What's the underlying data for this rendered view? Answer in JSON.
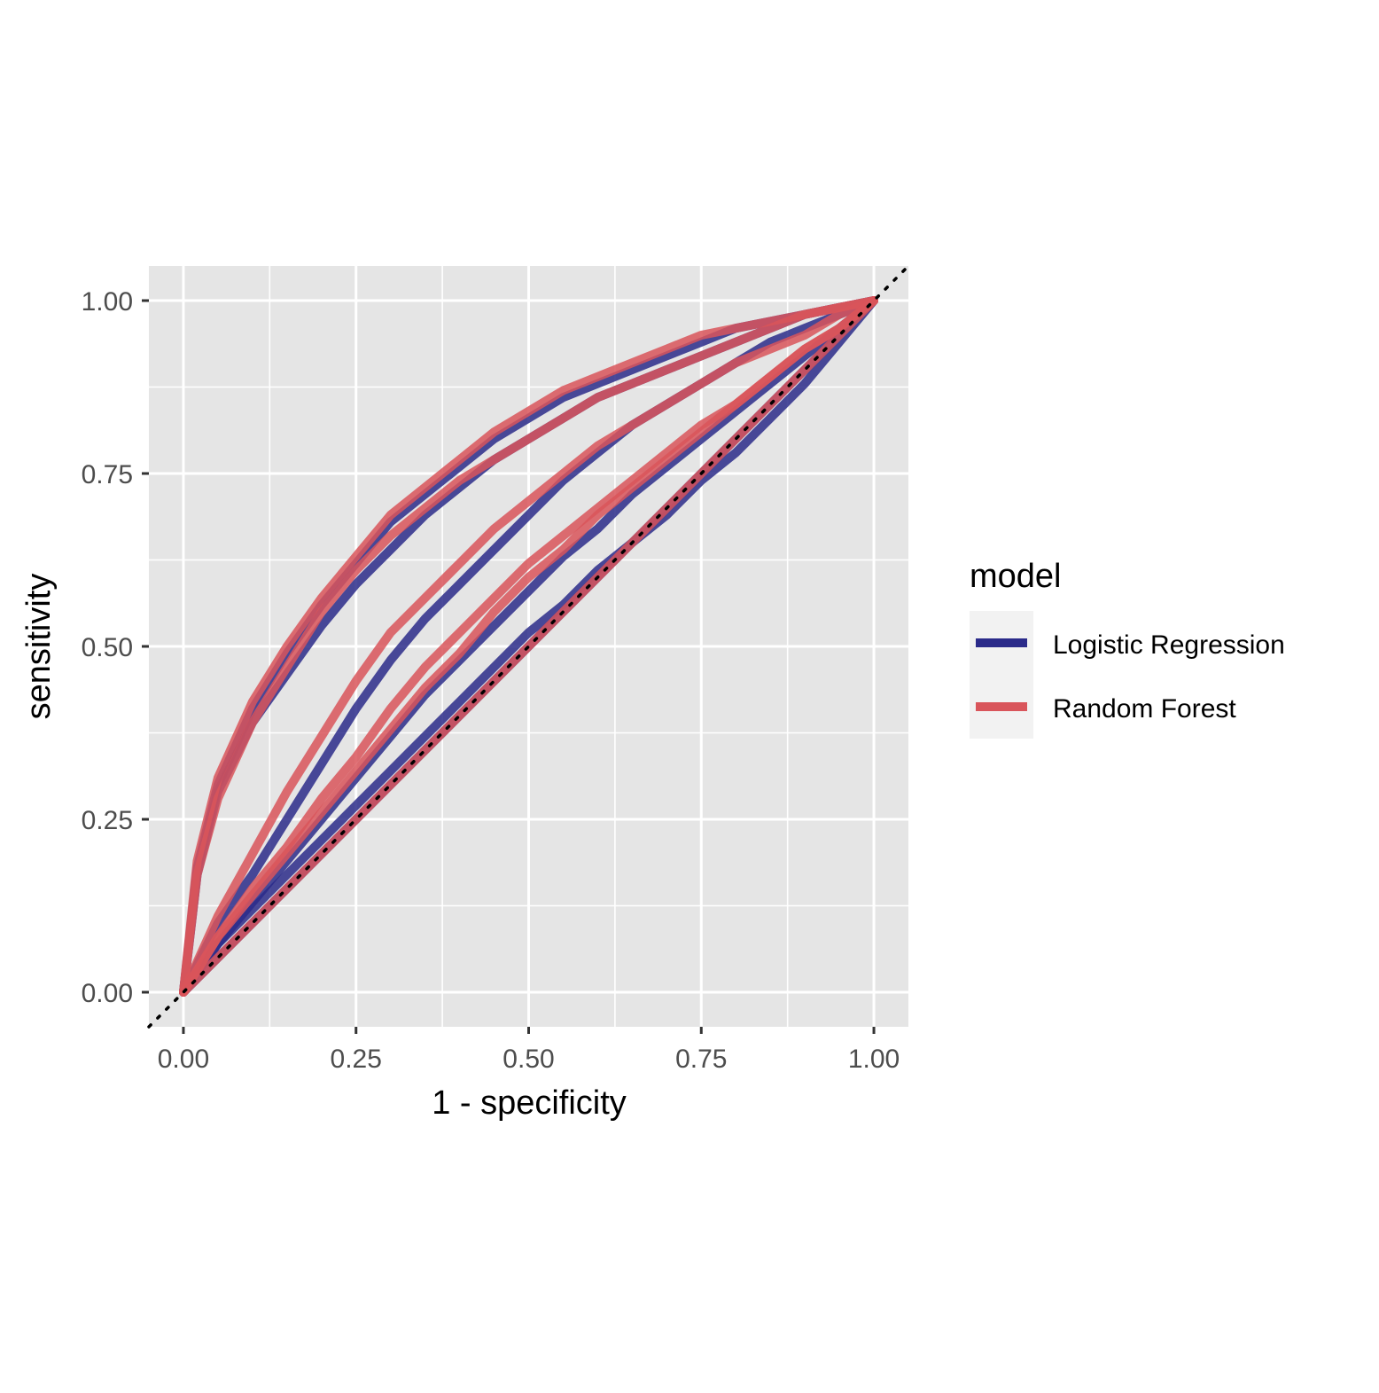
{
  "chart_data": {
    "type": "line",
    "xlabel": "1 - specificity",
    "ylabel": "sensitivity",
    "xlim": [
      -0.05,
      1.05
    ],
    "ylim": [
      -0.05,
      1.05
    ],
    "xticks": [
      "0.00",
      "0.25",
      "0.50",
      "0.75",
      "1.00"
    ],
    "yticks": [
      "0.00",
      "0.25",
      "0.50",
      "0.75",
      "1.00"
    ],
    "grid": true,
    "reference_line": {
      "style": "dotted",
      "x": [
        -0.05,
        1.05
      ],
      "y": [
        -0.05,
        1.05
      ]
    },
    "legend": {
      "title": "model",
      "position": "right",
      "entries": [
        "Logistic Regression",
        "Random Forest"
      ]
    },
    "colors": {
      "Logistic Regression": "#2b2b8a",
      "Random Forest": "#d9555b",
      "panel": "#e5e5e5",
      "grid": "#ffffff"
    },
    "series": [
      {
        "name": "Logistic Regression",
        "curve": "upper",
        "x": [
          0,
          0.02,
          0.05,
          0.1,
          0.15,
          0.2,
          0.25,
          0.3,
          0.35,
          0.4,
          0.45,
          0.5,
          0.55,
          0.6,
          0.65,
          0.7,
          0.75,
          0.8,
          0.85,
          0.9,
          0.95,
          1.0
        ],
        "y": [
          0,
          0.18,
          0.3,
          0.41,
          0.49,
          0.56,
          0.62,
          0.68,
          0.72,
          0.76,
          0.8,
          0.83,
          0.86,
          0.88,
          0.9,
          0.92,
          0.94,
          0.96,
          0.97,
          0.98,
          0.99,
          1.0
        ]
      },
      {
        "name": "Logistic Regression",
        "curve": "upper-middle",
        "x": [
          0,
          0.02,
          0.05,
          0.1,
          0.15,
          0.2,
          0.25,
          0.3,
          0.35,
          0.4,
          0.45,
          0.5,
          0.55,
          0.6,
          0.65,
          0.7,
          0.75,
          0.8,
          0.85,
          0.9,
          0.95,
          1.0
        ],
        "y": [
          0,
          0.17,
          0.29,
          0.39,
          0.46,
          0.53,
          0.59,
          0.64,
          0.69,
          0.73,
          0.77,
          0.8,
          0.83,
          0.86,
          0.88,
          0.9,
          0.92,
          0.94,
          0.96,
          0.98,
          0.99,
          1.0
        ]
      },
      {
        "name": "Logistic Regression",
        "curve": "middle",
        "x": [
          0,
          0.05,
          0.1,
          0.15,
          0.2,
          0.25,
          0.3,
          0.35,
          0.4,
          0.45,
          0.5,
          0.55,
          0.6,
          0.65,
          0.7,
          0.75,
          0.8,
          0.85,
          0.9,
          0.95,
          1.0
        ],
        "y": [
          0,
          0.1,
          0.17,
          0.25,
          0.33,
          0.41,
          0.48,
          0.54,
          0.59,
          0.64,
          0.69,
          0.74,
          0.78,
          0.82,
          0.85,
          0.88,
          0.91,
          0.94,
          0.96,
          0.98,
          1.0
        ]
      },
      {
        "name": "Logistic Regression",
        "curve": "lower-middle",
        "x": [
          0,
          0.05,
          0.1,
          0.15,
          0.2,
          0.25,
          0.3,
          0.35,
          0.4,
          0.45,
          0.5,
          0.55,
          0.6,
          0.65,
          0.7,
          0.75,
          0.8,
          0.85,
          0.9,
          0.95,
          1.0
        ],
        "y": [
          0,
          0.07,
          0.13,
          0.19,
          0.25,
          0.31,
          0.37,
          0.43,
          0.48,
          0.53,
          0.58,
          0.63,
          0.67,
          0.72,
          0.76,
          0.8,
          0.84,
          0.88,
          0.92,
          0.96,
          1.0
        ]
      },
      {
        "name": "Logistic Regression",
        "curve": "lower",
        "x": [
          0,
          0.05,
          0.1,
          0.15,
          0.2,
          0.25,
          0.3,
          0.35,
          0.4,
          0.45,
          0.5,
          0.55,
          0.6,
          0.65,
          0.7,
          0.75,
          0.8,
          0.85,
          0.9,
          0.95,
          1.0
        ],
        "y": [
          0,
          0.07,
          0.12,
          0.17,
          0.22,
          0.27,
          0.32,
          0.37,
          0.42,
          0.47,
          0.52,
          0.56,
          0.61,
          0.65,
          0.69,
          0.74,
          0.78,
          0.83,
          0.88,
          0.94,
          1.0
        ]
      },
      {
        "name": "Logistic Regression",
        "curve": "diagonal",
        "x": [
          0,
          1
        ],
        "y": [
          0,
          1
        ]
      },
      {
        "name": "Random Forest",
        "curve": "upper",
        "x": [
          0,
          0.02,
          0.05,
          0.1,
          0.15,
          0.2,
          0.25,
          0.3,
          0.35,
          0.4,
          0.45,
          0.5,
          0.55,
          0.6,
          0.65,
          0.7,
          0.75,
          0.8,
          0.85,
          0.9,
          0.95,
          1.0
        ],
        "y": [
          0,
          0.19,
          0.31,
          0.42,
          0.5,
          0.57,
          0.63,
          0.69,
          0.73,
          0.77,
          0.81,
          0.84,
          0.87,
          0.89,
          0.91,
          0.93,
          0.95,
          0.96,
          0.97,
          0.98,
          0.99,
          1.0
        ]
      },
      {
        "name": "Random Forest",
        "curve": "upper-middle",
        "x": [
          0,
          0.02,
          0.05,
          0.1,
          0.15,
          0.2,
          0.25,
          0.3,
          0.35,
          0.4,
          0.45,
          0.5,
          0.55,
          0.6,
          0.65,
          0.7,
          0.75,
          0.8,
          0.85,
          0.9,
          0.95,
          1.0
        ],
        "y": [
          0,
          0.17,
          0.28,
          0.39,
          0.47,
          0.55,
          0.61,
          0.66,
          0.7,
          0.74,
          0.77,
          0.8,
          0.83,
          0.86,
          0.88,
          0.9,
          0.92,
          0.94,
          0.96,
          0.98,
          0.99,
          1.0
        ]
      },
      {
        "name": "Random Forest",
        "curve": "middle",
        "x": [
          0,
          0.05,
          0.1,
          0.15,
          0.2,
          0.25,
          0.3,
          0.35,
          0.4,
          0.45,
          0.5,
          0.55,
          0.6,
          0.65,
          0.7,
          0.75,
          0.8,
          0.85,
          0.9,
          0.95,
          1.0
        ],
        "y": [
          0,
          0.11,
          0.2,
          0.29,
          0.37,
          0.45,
          0.52,
          0.57,
          0.62,
          0.67,
          0.71,
          0.75,
          0.79,
          0.82,
          0.85,
          0.88,
          0.91,
          0.93,
          0.95,
          0.98,
          1.0
        ]
      },
      {
        "name": "Random Forest",
        "curve": "lower-middle",
        "x": [
          0,
          0.05,
          0.1,
          0.15,
          0.2,
          0.25,
          0.3,
          0.35,
          0.4,
          0.45,
          0.5,
          0.55,
          0.6,
          0.65,
          0.7,
          0.75,
          0.8,
          0.85,
          0.9,
          0.95,
          1.0
        ],
        "y": [
          0,
          0.08,
          0.15,
          0.21,
          0.28,
          0.34,
          0.41,
          0.47,
          0.52,
          0.57,
          0.62,
          0.66,
          0.7,
          0.74,
          0.78,
          0.82,
          0.85,
          0.89,
          0.93,
          0.96,
          1.0
        ]
      },
      {
        "name": "Random Forest",
        "curve": "lower",
        "x": [
          0,
          0.05,
          0.1,
          0.15,
          0.2,
          0.25,
          0.3,
          0.35,
          0.4,
          0.45,
          0.5,
          0.55,
          0.6,
          0.65,
          0.7,
          0.75,
          0.8,
          0.85,
          0.9,
          0.95,
          1.0
        ],
        "y": [
          0,
          0.08,
          0.14,
          0.2,
          0.26,
          0.32,
          0.38,
          0.44,
          0.49,
          0.55,
          0.6,
          0.64,
          0.69,
          0.73,
          0.77,
          0.81,
          0.85,
          0.89,
          0.93,
          0.96,
          1.0
        ]
      },
      {
        "name": "Random Forest",
        "curve": "diagonal",
        "x": [
          0,
          1
        ],
        "y": [
          0,
          1
        ]
      }
    ]
  }
}
